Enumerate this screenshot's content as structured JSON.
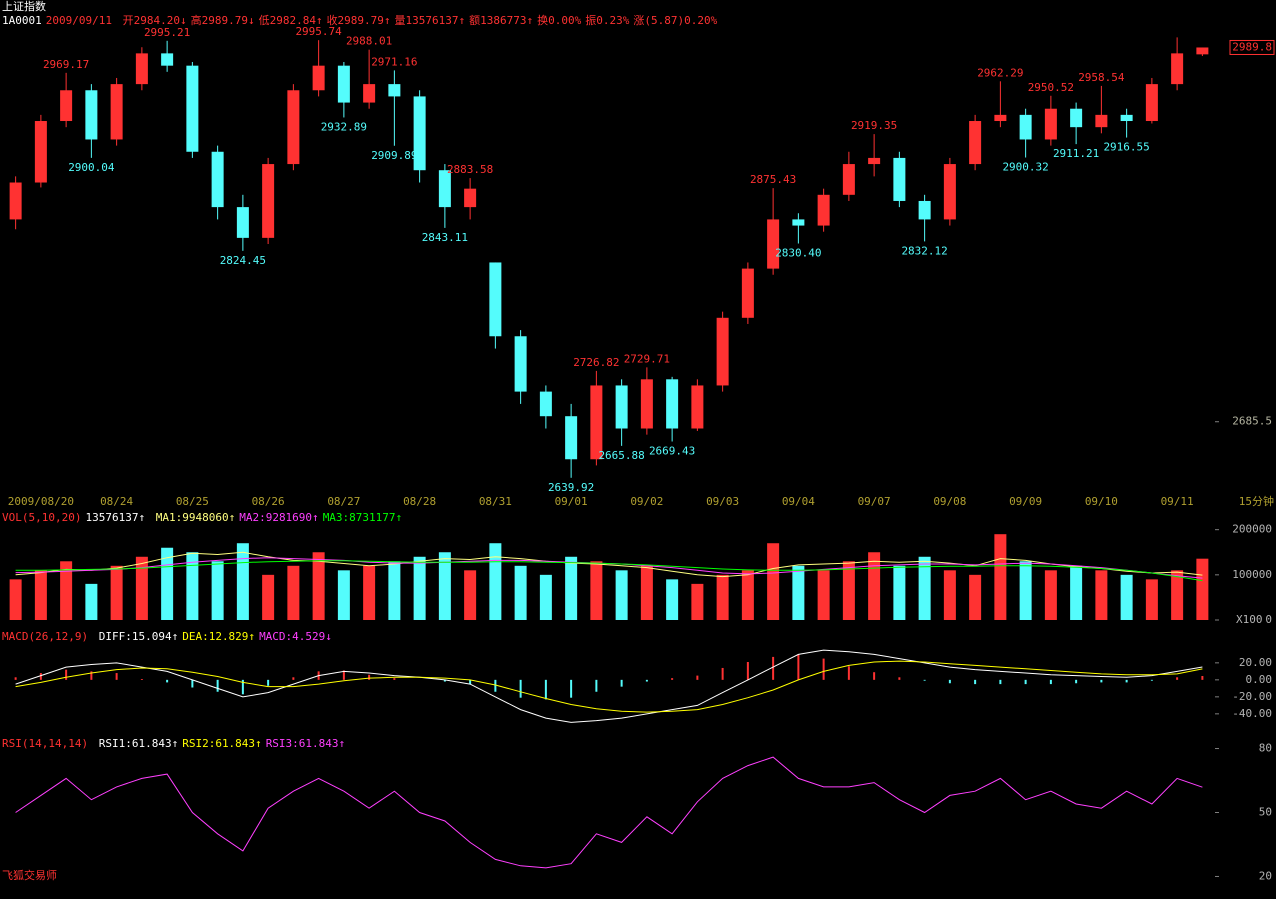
{
  "chart_data": {
    "type": "candlestick",
    "header": {
      "name": "上证指数",
      "code": "1A0001",
      "date": "2009/09/11",
      "fields": [
        "开2984.20↓",
        "高2989.79↓",
        "低2982.84↑",
        "收2989.79↑",
        "量13576137↑",
        "额1386773↑",
        "换0.00%",
        "振0.23%",
        "涨(5.87)0.20%"
      ]
    },
    "footer": "飞狐交易师",
    "period": "15分钟",
    "up_color": "#ff3232",
    "down_color": "#54fcfc",
    "categories": [
      "2009/08/20",
      null,
      null,
      "08/24",
      null,
      null,
      "08/25",
      null,
      null,
      "08/26",
      null,
      null,
      "08/27",
      null,
      null,
      "08/28",
      null,
      null,
      "08/31",
      null,
      null,
      "09/01",
      null,
      null,
      "09/02",
      null,
      null,
      "09/03",
      null,
      null,
      "09/04",
      null,
      null,
      "09/07",
      null,
      null,
      "09/08",
      null,
      null,
      "09/09",
      null,
      null,
      "09/10",
      null,
      null,
      "09/11",
      null,
      null
    ],
    "ohlc": [
      [
        2850,
        2885,
        2842,
        2880
      ],
      [
        2880,
        2935,
        2876,
        2930
      ],
      [
        2930,
        2969.17,
        2925,
        2955
      ],
      [
        2955,
        2960,
        2900.04,
        2915
      ],
      [
        2915,
        2965,
        2910,
        2960
      ],
      [
        2960,
        2990,
        2955,
        2985
      ],
      [
        2985,
        2995.21,
        2970,
        2975
      ],
      [
        2975,
        2978,
        2900,
        2905
      ],
      [
        2905,
        2910,
        2850,
        2860
      ],
      [
        2860,
        2870,
        2824.45,
        2835
      ],
      [
        2835,
        2900,
        2830,
        2895
      ],
      [
        2895,
        2960,
        2890,
        2955
      ],
      [
        2955,
        2995.74,
        2950,
        2975
      ],
      [
        2975,
        2978,
        2932.89,
        2945
      ],
      [
        2945,
        2988.01,
        2940,
        2960
      ],
      [
        2960,
        2971.16,
        2909.89,
        2950
      ],
      [
        2950,
        2955,
        2880,
        2890
      ],
      [
        2890,
        2895,
        2843.11,
        2860
      ],
      [
        2860,
        2883.58,
        2850,
        2875
      ],
      [
        2815,
        2815,
        2745,
        2755
      ],
      [
        2755,
        2760,
        2700,
        2710
      ],
      [
        2710,
        2715,
        2680,
        2690
      ],
      [
        2690,
        2700,
        2639.92,
        2655
      ],
      [
        2655,
        2726.82,
        2650,
        2715
      ],
      [
        2715,
        2720,
        2665.88,
        2680
      ],
      [
        2680,
        2729.71,
        2675,
        2720
      ],
      [
        2720,
        2722,
        2669.43,
        2680
      ],
      [
        2680,
        2720,
        2678,
        2715
      ],
      [
        2715,
        2775,
        2710,
        2770
      ],
      [
        2770,
        2815,
        2765,
        2810
      ],
      [
        2810,
        2875.43,
        2805,
        2850
      ],
      [
        2850,
        2855,
        2830.4,
        2845
      ],
      [
        2845,
        2875,
        2840,
        2870
      ],
      [
        2870,
        2905,
        2865,
        2895
      ],
      [
        2895,
        2919.35,
        2885,
        2900
      ],
      [
        2900,
        2905,
        2860,
        2865
      ],
      [
        2865,
        2870,
        2832.12,
        2850
      ],
      [
        2850,
        2900,
        2845,
        2895
      ],
      [
        2895,
        2935,
        2890,
        2930
      ],
      [
        2930,
        2962.29,
        2925,
        2935
      ],
      [
        2935,
        2940,
        2900.32,
        2915
      ],
      [
        2915,
        2950.52,
        2910,
        2940
      ],
      [
        2940,
        2945,
        2911.21,
        2925
      ],
      [
        2925,
        2958.54,
        2920,
        2935
      ],
      [
        2935,
        2940,
        2916.55,
        2930
      ],
      [
        2930,
        2965,
        2928,
        2960
      ],
      [
        2960,
        2998,
        2955,
        2985
      ],
      [
        2984.2,
        2989.79,
        2982.84,
        2989.79
      ]
    ],
    "ylim": [
      2630,
      3004
    ],
    "yticks": [
      2685.5
    ],
    "last_price": {
      "value": 2989.79,
      "label": "2989.8"
    },
    "high_labels": [
      2969.17,
      2995.21,
      2995.74,
      2988.01,
      2971.16,
      2883.58,
      2726.82,
      2729.71,
      2875.43,
      2919.35,
      2962.29,
      2950.52,
      2958.54
    ],
    "low_labels": [
      2900.04,
      2824.45,
      2932.89,
      2909.89,
      2843.11,
      2639.92,
      2665.88,
      2669.43,
      {
        "value": 2830.4,
        "label": "2830.40"
      },
      2832.12,
      2900.32,
      2911.21,
      2916.55
    ],
    "volume": {
      "title": "VOL(5,10,20)",
      "current": "13576137↑",
      "unit": "X100",
      "ylim": [
        0,
        217000
      ],
      "yticks": [
        0,
        100000,
        200000
      ],
      "values": [
        90000,
        110000,
        130000,
        80000,
        120000,
        140000,
        160000,
        150000,
        130000,
        170000,
        100000,
        120000,
        150000,
        110000,
        120000,
        130000,
        140000,
        150000,
        110000,
        170000,
        120000,
        100000,
        140000,
        130000,
        110000,
        120000,
        90000,
        80000,
        100000,
        110000,
        170000,
        120000,
        110000,
        130000,
        150000,
        120000,
        140000,
        110000,
        100000,
        190000,
        130000,
        110000,
        120000,
        110000,
        100000,
        90000,
        110000,
        135761.37
      ],
      "series": [
        {
          "name": "MA1:9948060↑",
          "color": "#ffff80",
          "values": [
            100000,
            105000,
            112000,
            110000,
            115000,
            125000,
            138000,
            148000,
            145000,
            150000,
            140000,
            132000,
            130000,
            125000,
            120000,
            124000,
            130000,
            136000,
            134000,
            140000,
            136000,
            130000,
            126000,
            124000,
            120000,
            116000,
            108000,
            100000,
            96000,
            100000,
            114000,
            122000,
            124000,
            126000,
            130000,
            128000,
            130000,
            126000,
            120000,
            136000,
            132000,
            124000,
            118000,
            114000,
            108000,
            104000,
            106000,
            99480.6
          ]
        },
        {
          "name": "MA2:9281690↑",
          "color": "#ff40ff",
          "values": [
            105000,
            106000,
            108000,
            110000,
            112000,
            116000,
            122000,
            128000,
            132000,
            136000,
            138000,
            136000,
            134000,
            132000,
            128000,
            126000,
            126000,
            128000,
            130000,
            132000,
            132000,
            130000,
            128000,
            126000,
            124000,
            120000,
            116000,
            110000,
            104000,
            102000,
            104000,
            108000,
            112000,
            116000,
            120000,
            122000,
            124000,
            124000,
            122000,
            124000,
            126000,
            124000,
            120000,
            116000,
            110000,
            104000,
            98000,
            92816.9
          ]
        },
        {
          "name": "MA3:8731177↑",
          "color": "#00ff00",
          "values": [
            110000,
            110000,
            111000,
            112000,
            113000,
            115000,
            118000,
            121000,
            124000,
            127000,
            129000,
            130000,
            131000,
            131000,
            130000,
            129000,
            128000,
            128000,
            128000,
            129000,
            129000,
            128000,
            127000,
            126000,
            124000,
            122000,
            119000,
            116000,
            113000,
            111000,
            110000,
            110000,
            111000,
            113000,
            115000,
            117000,
            118000,
            119000,
            119000,
            120000,
            120000,
            119000,
            117000,
            114000,
            110000,
            104000,
            96000,
            87311.77
          ]
        }
      ]
    },
    "macd": {
      "title": "MACD(26,12,9)",
      "ylim": [
        -59,
        41
      ],
      "yticks": [
        {
          "value": 20,
          "label": "20.00"
        },
        {
          "value": 0,
          "label": "0.00"
        },
        {
          "value": -20,
          "label": "-20.00"
        },
        {
          "value": -40,
          "label": "-40.00"
        }
      ],
      "series": [
        {
          "name": "DIFF:15.094↑",
          "color": "#ffffff",
          "values": [
            -5,
            5,
            15,
            18,
            20,
            15,
            10,
            0,
            -10,
            -20,
            -15,
            -5,
            5,
            10,
            8,
            5,
            3,
            0,
            -5,
            -20,
            -35,
            -45,
            -50,
            -48,
            -45,
            -40,
            -35,
            -30,
            -15,
            0,
            15,
            30,
            35,
            33,
            30,
            25,
            20,
            15,
            12,
            10,
            8,
            6,
            5,
            4,
            3,
            5,
            10,
            15.094
          ]
        },
        {
          "name": "DEA:12.829↑",
          "color": "#ffff00",
          "values": [
            -8,
            -3,
            3,
            8,
            12,
            14,
            13,
            9,
            4,
            -3,
            -8,
            -8,
            -5,
            -1,
            2,
            3,
            3,
            2,
            0,
            -6,
            -14,
            -22,
            -29,
            -34,
            -37,
            -38,
            -37,
            -35,
            -29,
            -21,
            -12,
            0,
            10,
            17,
            21,
            22,
            21,
            19,
            17,
            15,
            13,
            11,
            9,
            7,
            6,
            6,
            7,
            12.829
          ]
        }
      ],
      "bars": {
        "name": "MACD:4.529↓",
        "color": "#ff40ff",
        "values": [
          3,
          8,
          12,
          10,
          8,
          1,
          -3,
          -9,
          -14,
          -17,
          -7,
          3,
          10,
          11,
          6,
          2,
          0,
          -2,
          -5,
          -14,
          -21,
          -23,
          -21,
          -14,
          -8,
          -2,
          2,
          5,
          14,
          21,
          27,
          30,
          25,
          16,
          9,
          3,
          -1,
          -4,
          -5,
          -5,
          -5,
          -5,
          -4,
          -3,
          -3,
          -1,
          3,
          4.529
        ]
      }
    },
    "rsi": {
      "title": "RSI(14,14,14)",
      "ylim": [
        16,
        84
      ],
      "yticks": [
        20,
        50,
        80
      ],
      "legend": [
        {
          "name": "RSI1:61.843↑",
          "color": "#ffffff"
        },
        {
          "name": "RSI2:61.843↑",
          "color": "#ffff00"
        },
        {
          "name": "RSI3:61.843↑",
          "color": "#ff40ff"
        }
      ],
      "color": "#ff40ff",
      "values": [
        50,
        58,
        66,
        56,
        62,
        66,
        68,
        50,
        40,
        32,
        52,
        60,
        66,
        60,
        52,
        60,
        50,
        46,
        36,
        28,
        25,
        24,
        26,
        40,
        36,
        48,
        40,
        55,
        66,
        72,
        76,
        66,
        62,
        62,
        64,
        56,
        50,
        58,
        60,
        66,
        56,
        60,
        54,
        52,
        60,
        54,
        66,
        61.843
      ]
    }
  }
}
